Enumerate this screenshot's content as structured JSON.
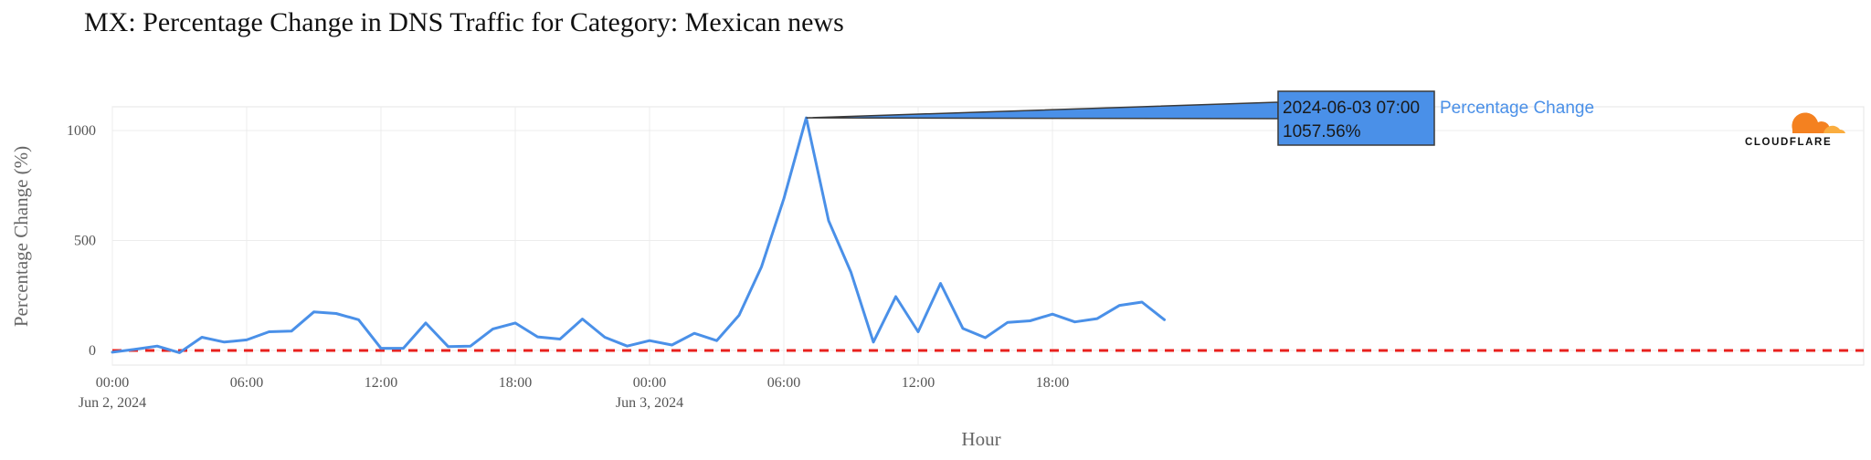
{
  "title": "MX: Percentage Change in DNS Traffic for Category: Mexican news",
  "logo": {
    "text": "CLOUDFLARE",
    "icon": "cloudflare-cloud-icon",
    "color": "#f48120",
    "color_light": "#faad3f"
  },
  "chart_data": {
    "type": "line",
    "xlabel": "Hour",
    "ylabel": "Percentage Change (%)",
    "ylim": [
      -50,
      1100
    ],
    "yticks": [
      0,
      500,
      1000
    ],
    "x_start": "2024-06-02 00:00",
    "x_step_hours": 1,
    "xticks": [
      {
        "hour": 0,
        "label": "00:00",
        "sublabel": "Jun 2, 2024"
      },
      {
        "hour": 6,
        "label": "06:00",
        "sublabel": ""
      },
      {
        "hour": 12,
        "label": "12:00",
        "sublabel": ""
      },
      {
        "hour": 18,
        "label": "18:00",
        "sublabel": ""
      },
      {
        "hour": 24,
        "label": "00:00",
        "sublabel": "Jun 3, 2024"
      },
      {
        "hour": 30,
        "label": "06:00",
        "sublabel": ""
      },
      {
        "hour": 36,
        "label": "12:00",
        "sublabel": ""
      },
      {
        "hour": 42,
        "label": "18:00",
        "sublabel": ""
      }
    ],
    "grid": true,
    "series": [
      {
        "name": "Percentage Change",
        "color": "#4a90e8",
        "values": [
          -8,
          5,
          20,
          -10,
          60,
          38,
          48,
          85,
          88,
          175,
          168,
          140,
          10,
          10,
          125,
          18,
          20,
          98,
          125,
          62,
          52,
          143,
          60,
          20,
          45,
          25,
          78,
          45,
          160,
          380,
          690,
          1057.56,
          590,
          355,
          38,
          245,
          85,
          305,
          100,
          58,
          128,
          135,
          165,
          130,
          145,
          205,
          220,
          140
        ]
      }
    ],
    "baseline": {
      "value": 0,
      "color": "#e8211e",
      "style": "dashed"
    },
    "tooltip": {
      "index": 31,
      "date_label": "2024-06-03 07:00",
      "value_label": "1057.56%",
      "series_label": "Percentage Change",
      "bg": "#4a90e8"
    }
  }
}
